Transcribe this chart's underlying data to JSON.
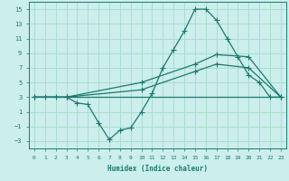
{
  "xlabel": "Humidex (Indice chaleur)",
  "background_color": "#cceeed",
  "grid_color": "#aaddcc",
  "line_color": "#1a7a6e",
  "xlim": [
    -0.5,
    23.5
  ],
  "ylim": [
    -4,
    16
  ],
  "xticks": [
    0,
    1,
    2,
    3,
    4,
    5,
    6,
    7,
    8,
    9,
    10,
    11,
    12,
    13,
    14,
    15,
    16,
    17,
    18,
    19,
    20,
    21,
    22,
    23
  ],
  "yticks": [
    -3,
    -1,
    1,
    3,
    5,
    7,
    9,
    11,
    13,
    15
  ],
  "line1_x": [
    0,
    1,
    2,
    3,
    4,
    5,
    6,
    7,
    8,
    9,
    10,
    11,
    12,
    13,
    14,
    15,
    16,
    17,
    18,
    19,
    20,
    21,
    22,
    23
  ],
  "line1_y": [
    3,
    3,
    3,
    3,
    2.2,
    2.0,
    -0.5,
    -2.8,
    -1.5,
    -1.2,
    1.0,
    3.5,
    7.0,
    9.5,
    12.0,
    15.0,
    15.0,
    13.5,
    11.0,
    8.5,
    6.0,
    5.0,
    3.0,
    3.0
  ],
  "line2_x": [
    0,
    3,
    23
  ],
  "line2_y": [
    3,
    3,
    3
  ],
  "line3_x": [
    0,
    3,
    10,
    15,
    17,
    20,
    23
  ],
  "line3_y": [
    3,
    3,
    5.0,
    7.5,
    8.8,
    8.5,
    3
  ],
  "line4_x": [
    0,
    3,
    10,
    15,
    17,
    20,
    23
  ],
  "line4_y": [
    3,
    3,
    4.0,
    6.5,
    7.5,
    7.0,
    3
  ]
}
